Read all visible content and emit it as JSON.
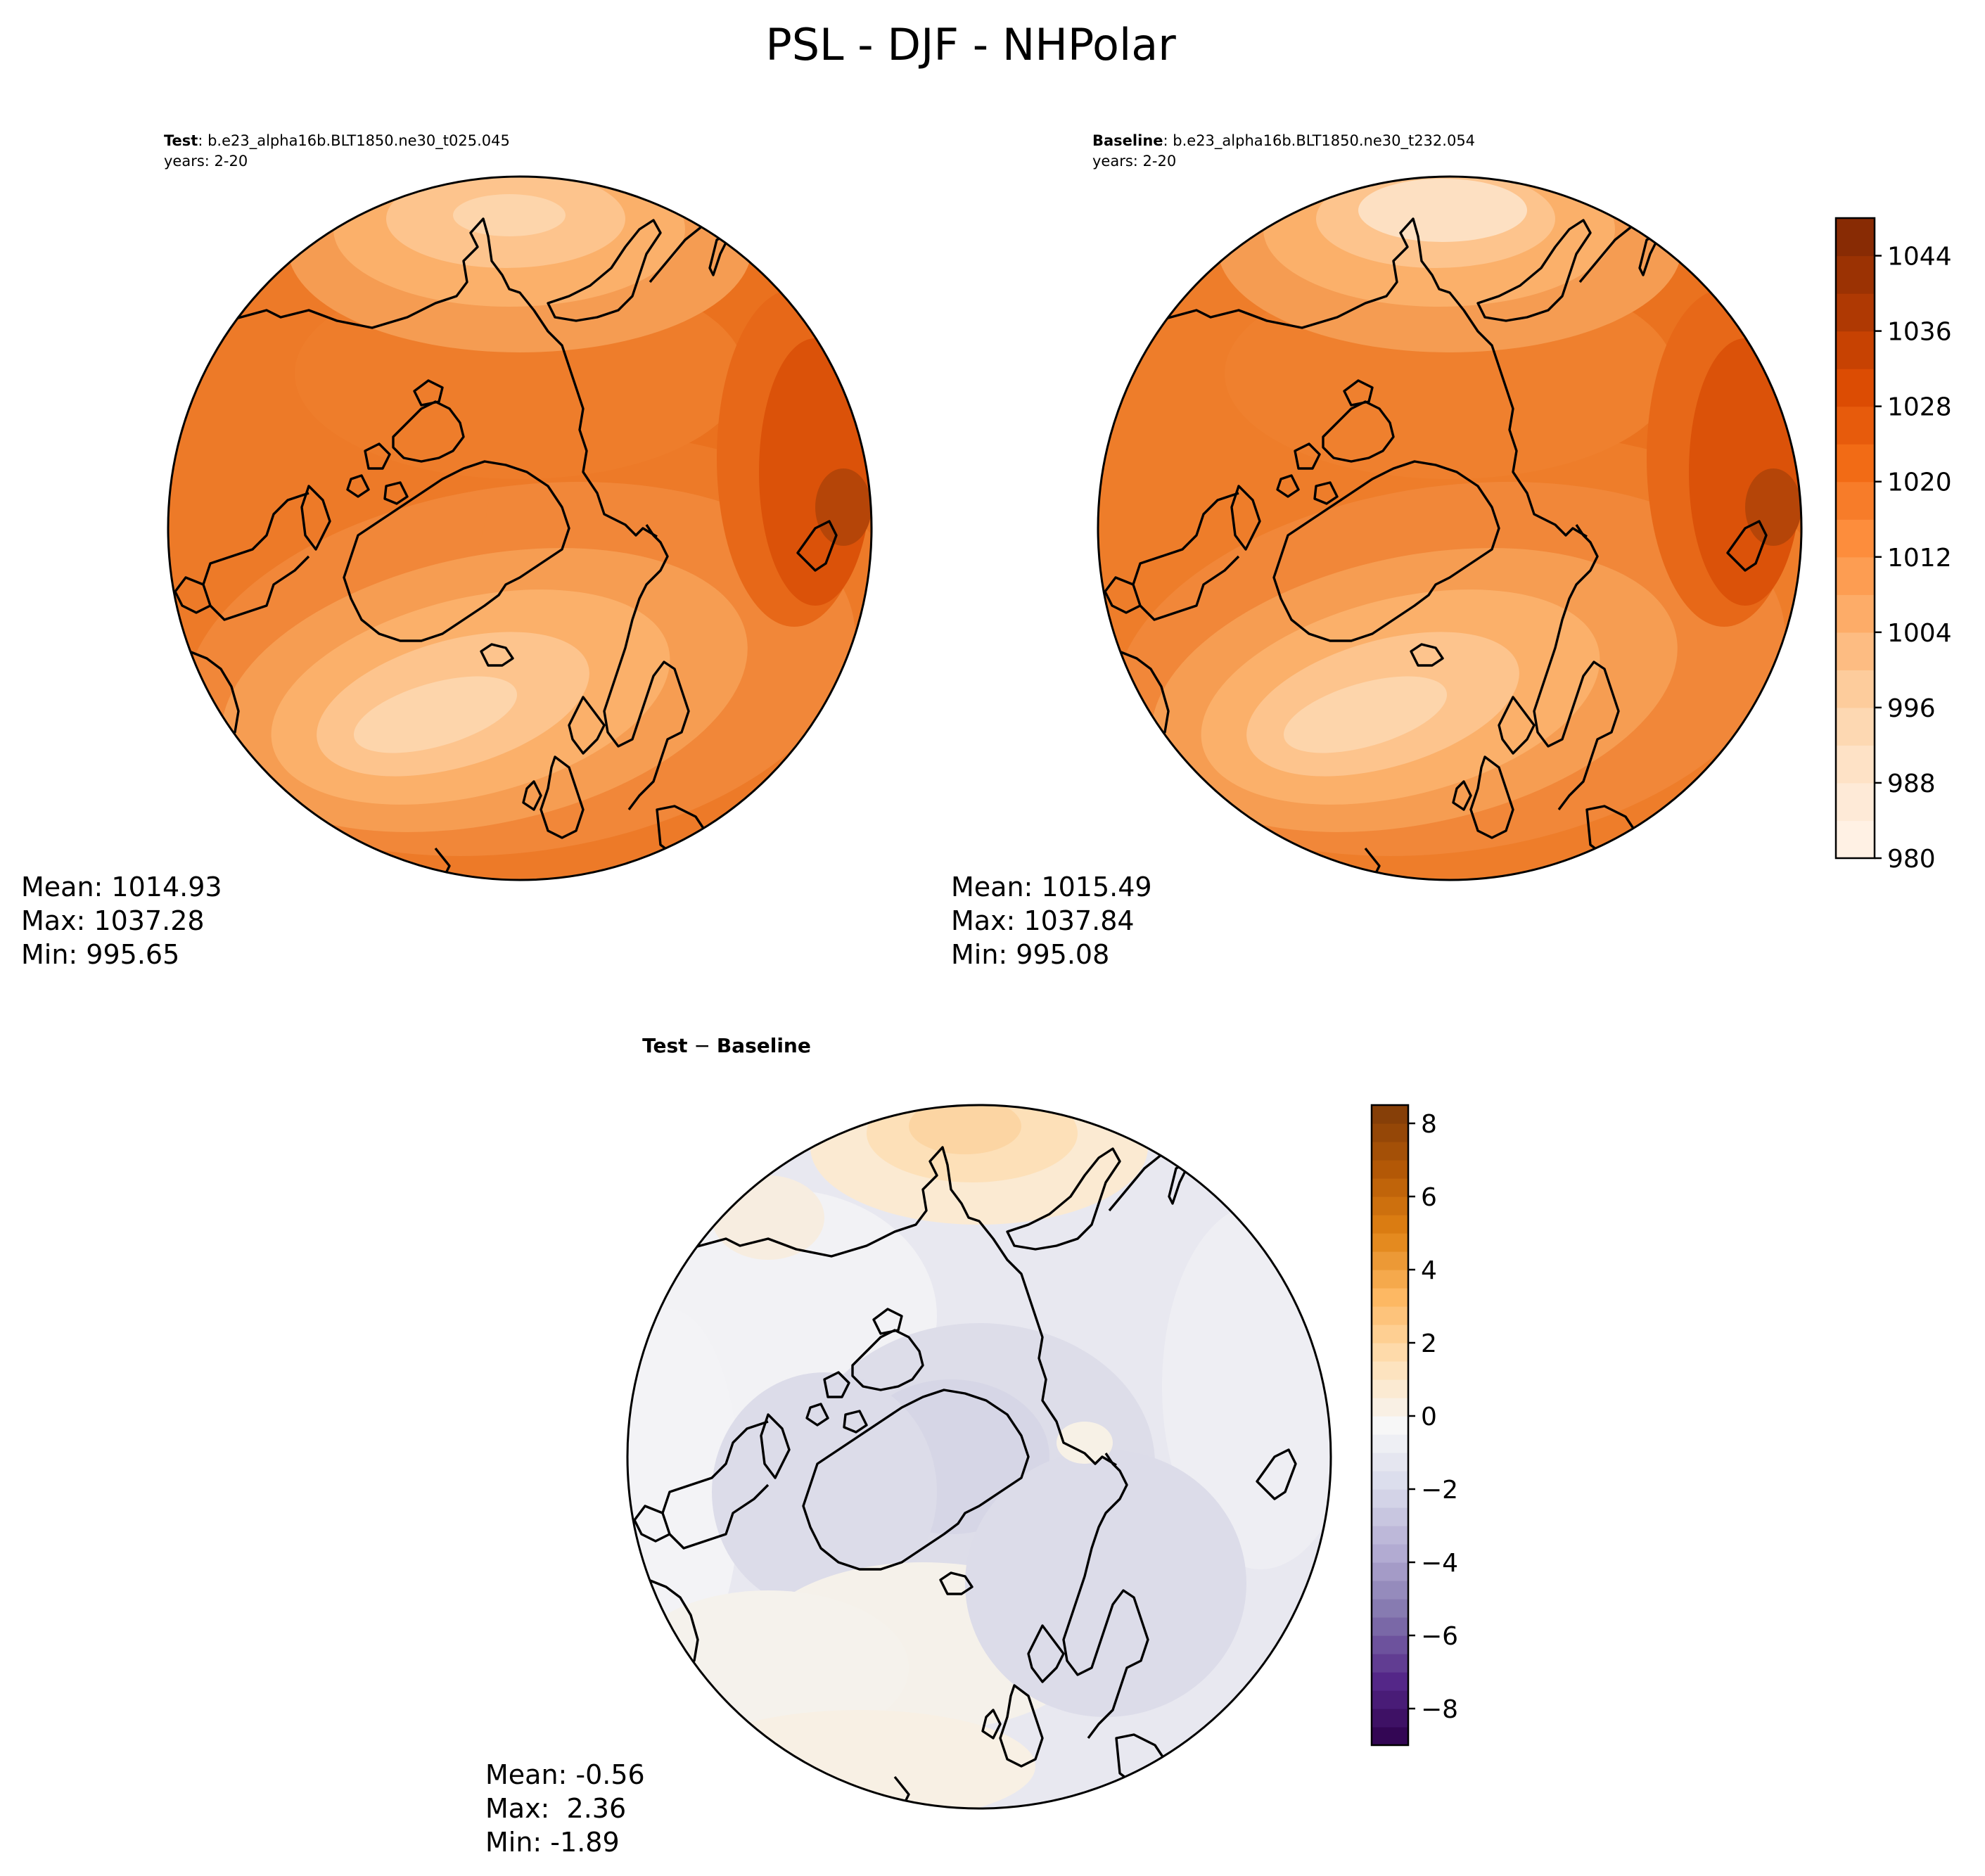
{
  "figure": {
    "title": "PSL - DJF - NHPolar"
  },
  "panels": {
    "test": {
      "label": "Test",
      "case": ": b.e23_alpha16b.BLT1850.ne30_t025.045",
      "years": "years: 2-20",
      "stats": {
        "mean": "Mean: 1014.93",
        "max": "Max: 1037.28",
        "min": "Min: 995.65"
      }
    },
    "baseline": {
      "label": "Baseline",
      "case": ": b.e23_alpha16b.BLT1850.ne30_t232.054",
      "years": "years: 2-20",
      "stats": {
        "mean": "Mean: 1015.49",
        "max": "Max: 1037.84",
        "min": "Min: 995.08"
      }
    },
    "diff": {
      "label_a": "Test",
      "minus": " − ",
      "label_b": "Baseline",
      "stats": {
        "mean": "Mean: -0.56",
        "max": "Max:  2.36",
        "min": "Min: -1.89"
      }
    }
  },
  "chart_data": [
    {
      "type": "heatmap",
      "name": "Test",
      "projection": "north polar stereographic",
      "colormap": "Oranges",
      "levels": {
        "min": 980,
        "max": 1048,
        "step": 4
      },
      "colorbar_ticks": [
        980,
        988,
        996,
        1004,
        1012,
        1020,
        1028,
        1036,
        1044
      ],
      "summary": {
        "mean": 1014.93,
        "max": 1037.28,
        "min": 995.65
      }
    },
    {
      "type": "heatmap",
      "name": "Baseline",
      "projection": "north polar stereographic",
      "colormap": "Oranges",
      "levels": {
        "min": 980,
        "max": 1048,
        "step": 4
      },
      "colorbar_ticks": [
        980,
        988,
        996,
        1004,
        1012,
        1020,
        1028,
        1036,
        1044
      ],
      "summary": {
        "mean": 1015.49,
        "max": 1037.84,
        "min": 995.08
      }
    },
    {
      "type": "heatmap",
      "name": "Test − Baseline",
      "projection": "north polar stereographic",
      "colormap": "PuOr_r",
      "levels": {
        "min": -9,
        "max": 8.5,
        "step": 0.5
      },
      "colorbar_ticks": [
        -8,
        -6,
        -4,
        -2,
        0,
        2,
        4,
        6,
        8
      ],
      "colorbar_tick_labels": [
        "−8",
        "−6",
        "−4",
        "−2",
        "0",
        "2",
        "4",
        "6",
        "8"
      ],
      "summary": {
        "mean": -0.56,
        "max": 2.36,
        "min": -1.89
      }
    }
  ]
}
